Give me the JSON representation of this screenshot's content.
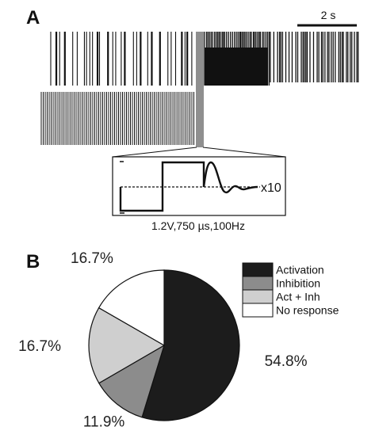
{
  "panel_a": {
    "label": "A",
    "scalebar_label": "2 s",
    "inset_gain_label": "x10",
    "stimulus_label": "1.2V,750 µs,100Hz"
  },
  "panel_b": {
    "label": "B"
  },
  "chart_data": {
    "type": "pie",
    "categories": [
      "Activation",
      "Inhibition",
      "Act + Inh",
      "No response"
    ],
    "values": [
      54.8,
      11.9,
      16.7,
      16.7
    ],
    "value_labels": [
      "54.8%",
      "11.9%",
      "16.7%",
      "16.7%"
    ],
    "colors": [
      "#1c1c1c",
      "#8c8c8c",
      "#cfcfcf",
      "#ffffff"
    ],
    "legend_placement": "top-right",
    "start_angle_deg": 0,
    "direction": "clockwise"
  }
}
